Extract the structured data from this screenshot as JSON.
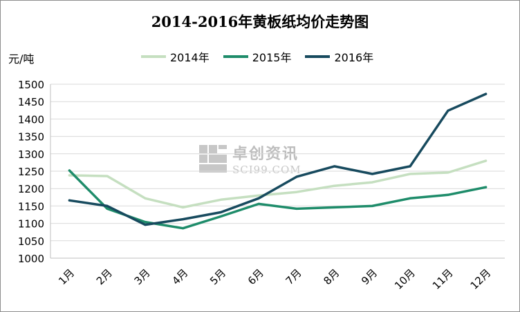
{
  "title": "2014-2016年黄板纸均价走势图",
  "unit_label": "元/吨",
  "watermark": {
    "cn": "卓创资讯",
    "en": "SCI99.COM"
  },
  "chart_data": {
    "type": "line",
    "title": "2014-2016年黄板纸均价走势图",
    "ylabel": "元/吨",
    "xlabel": "",
    "categories": [
      "1月",
      "2月",
      "3月",
      "4月",
      "5月",
      "6月",
      "7月",
      "8月",
      "9月",
      "10月",
      "11月",
      "12月"
    ],
    "ylim": [
      1000,
      1500
    ],
    "yticks": [
      1000,
      1050,
      1100,
      1150,
      1200,
      1250,
      1300,
      1350,
      1400,
      1450,
      1500
    ],
    "grid": "horizontal",
    "legend_position": "top",
    "series": [
      {
        "name": "2014年",
        "color": "#c5dfc0",
        "values": [
          1238,
          1236,
          1172,
          1146,
          1168,
          1180,
          1190,
          1208,
          1218,
          1242,
          1246,
          1280
        ]
      },
      {
        "name": "2015年",
        "color": "#1e8c6a",
        "values": [
          1252,
          1142,
          1104,
          1086,
          1120,
          1156,
          1142,
          1146,
          1150,
          1172,
          1182,
          1204
        ]
      },
      {
        "name": "2016年",
        "color": "#174a5e",
        "values": [
          1166,
          1150,
          1096,
          1112,
          1132,
          1172,
          1234,
          1264,
          1242,
          1264,
          1424,
          1472
        ]
      }
    ]
  }
}
